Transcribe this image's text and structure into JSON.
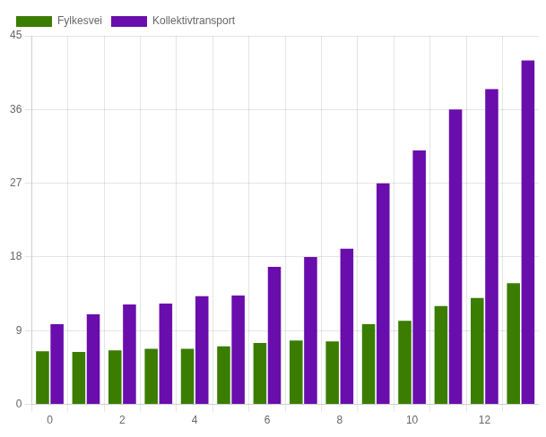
{
  "chart_data": {
    "type": "bar",
    "categories": [
      "0",
      null,
      "2",
      null,
      "4",
      null,
      "6",
      null,
      "8",
      null,
      "10",
      null,
      "12",
      null
    ],
    "series": [
      {
        "name": "Fylkesvei",
        "color": "#3a7d00",
        "values": [
          6.5,
          6.4,
          6.6,
          6.8,
          6.8,
          7.1,
          7.5,
          7.8,
          7.7,
          9.8,
          10.2,
          12.0,
          13.0,
          14.8
        ]
      },
      {
        "name": "Kollektivtransport",
        "color": "#6a0dad",
        "values": [
          9.8,
          11.0,
          12.2,
          12.3,
          13.2,
          13.3,
          16.8,
          18.0,
          19.0,
          27.0,
          31.0,
          36.0,
          38.5,
          42.0
        ]
      }
    ],
    "ylim": [
      0,
      45
    ],
    "yticks": [
      0,
      9,
      18,
      27,
      36,
      45
    ],
    "grid": true,
    "legend": "upper left"
  }
}
